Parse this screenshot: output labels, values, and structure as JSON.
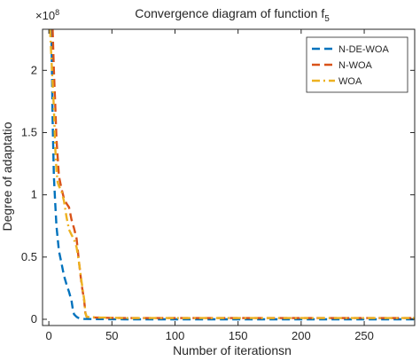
{
  "chart_data": {
    "type": "line",
    "title": "Convergence diagram of function f",
    "title_subscript": "5",
    "xlabel": "Number of iterationsn",
    "ylabel": "Degree of adaptatio",
    "y_multiplier": "×10",
    "y_multiplier_exp": "8",
    "xlim": [
      -5,
      290
    ],
    "ylim": [
      -0.05,
      2.33
    ],
    "xticks": [
      0,
      50,
      100,
      150,
      200,
      250
    ],
    "xtick_labels": [
      "0",
      "50",
      "100",
      "150",
      "200",
      "250"
    ],
    "yticks": [
      0,
      0.5,
      1,
      1.5,
      2
    ],
    "ytick_labels": [
      "0",
      "0.5",
      "1",
      "1.5",
      "2"
    ],
    "grid": false,
    "legend_position": "top-right",
    "series": [
      {
        "name": "N-DE-WOA",
        "color": "#0072BD",
        "dash": "dashed",
        "points": [
          [
            2,
            2.33
          ],
          [
            3,
            1.6
          ],
          [
            4,
            1.15
          ],
          [
            5,
            0.95
          ],
          [
            6,
            0.75
          ],
          [
            8,
            0.55
          ],
          [
            10,
            0.45
          ],
          [
            12,
            0.35
          ],
          [
            14,
            0.28
          ],
          [
            16,
            0.22
          ],
          [
            18,
            0.15
          ],
          [
            19,
            0.08
          ],
          [
            20,
            0.04
          ],
          [
            22,
            0.02
          ],
          [
            24,
            0.008
          ],
          [
            28,
            0.003
          ],
          [
            40,
            0.001
          ],
          [
            60,
            0.0
          ],
          [
            290,
            0.0
          ]
        ]
      },
      {
        "name": "N-WOA",
        "color": "#D95319",
        "dash": "dashed",
        "points": [
          [
            3,
            2.33
          ],
          [
            4,
            2.0
          ],
          [
            5,
            1.75
          ],
          [
            6,
            1.45
          ],
          [
            7,
            1.3
          ],
          [
            8,
            1.15
          ],
          [
            10,
            1.05
          ],
          [
            12,
            0.97
          ],
          [
            14,
            0.93
          ],
          [
            16,
            0.9
          ],
          [
            18,
            0.8
          ],
          [
            20,
            0.73
          ],
          [
            22,
            0.65
          ],
          [
            24,
            0.45
          ],
          [
            26,
            0.28
          ],
          [
            28,
            0.15
          ],
          [
            29,
            0.05
          ],
          [
            30,
            0.02
          ],
          [
            34,
            0.015
          ],
          [
            45,
            0.012
          ],
          [
            60,
            0.01
          ],
          [
            100,
            0.01
          ],
          [
            290,
            0.01
          ]
        ]
      },
      {
        "name": "WOA",
        "color": "#EDB120",
        "dash": "dashdot",
        "points": [
          [
            1,
            2.33
          ],
          [
            2,
            2.1
          ],
          [
            3,
            1.9
          ],
          [
            4,
            1.7
          ],
          [
            5,
            1.4
          ],
          [
            6,
            1.2
          ],
          [
            7,
            1.1
          ],
          [
            8,
            1.07
          ],
          [
            10,
            1.03
          ],
          [
            12,
            0.95
          ],
          [
            14,
            0.82
          ],
          [
            16,
            0.72
          ],
          [
            18,
            0.68
          ],
          [
            20,
            0.64
          ],
          [
            22,
            0.58
          ],
          [
            24,
            0.45
          ],
          [
            26,
            0.3
          ],
          [
            28,
            0.16
          ],
          [
            29,
            0.05
          ],
          [
            30,
            0.02
          ],
          [
            40,
            0.015
          ],
          [
            60,
            0.01
          ],
          [
            100,
            0.01
          ],
          [
            290,
            0.01
          ]
        ]
      }
    ]
  }
}
